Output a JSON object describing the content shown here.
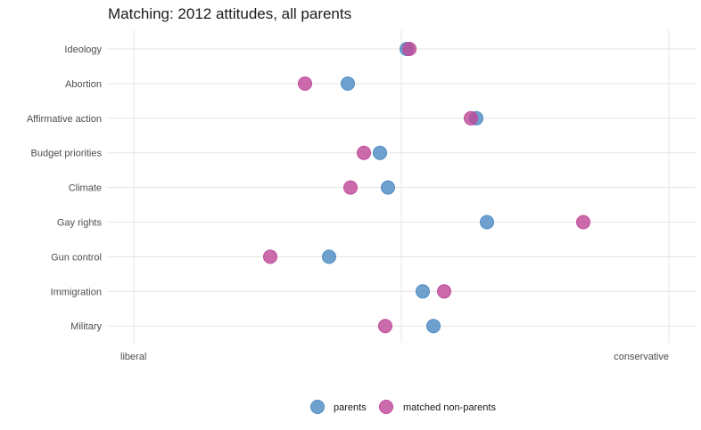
{
  "chart_data": {
    "type": "scatter",
    "title": "Matching: 2012 attitudes, all parents",
    "xlabel": "",
    "ylabel": "",
    "x_tick_labels": [
      "liberal",
      "conservative"
    ],
    "xlim": [
      -1,
      1
    ],
    "categories": [
      "Ideology",
      "Abortion",
      "Affirmative action",
      "Budget priorities",
      "Climate",
      "Gay rights",
      "Gun control",
      "Immigration",
      "Military"
    ],
    "series": [
      {
        "name": "parents",
        "color": "#4f8cc4",
        "values": [
          0.02,
          -0.2,
          0.28,
          -0.08,
          -0.05,
          0.32,
          -0.27,
          0.08,
          0.12
        ]
      },
      {
        "name": "matched non-parents",
        "color": "#c04b9a",
        "values": [
          0.03,
          -0.36,
          0.26,
          -0.14,
          -0.19,
          0.68,
          -0.49,
          0.16,
          -0.06
        ]
      }
    ],
    "legend_position": "bottom",
    "grid": true
  }
}
